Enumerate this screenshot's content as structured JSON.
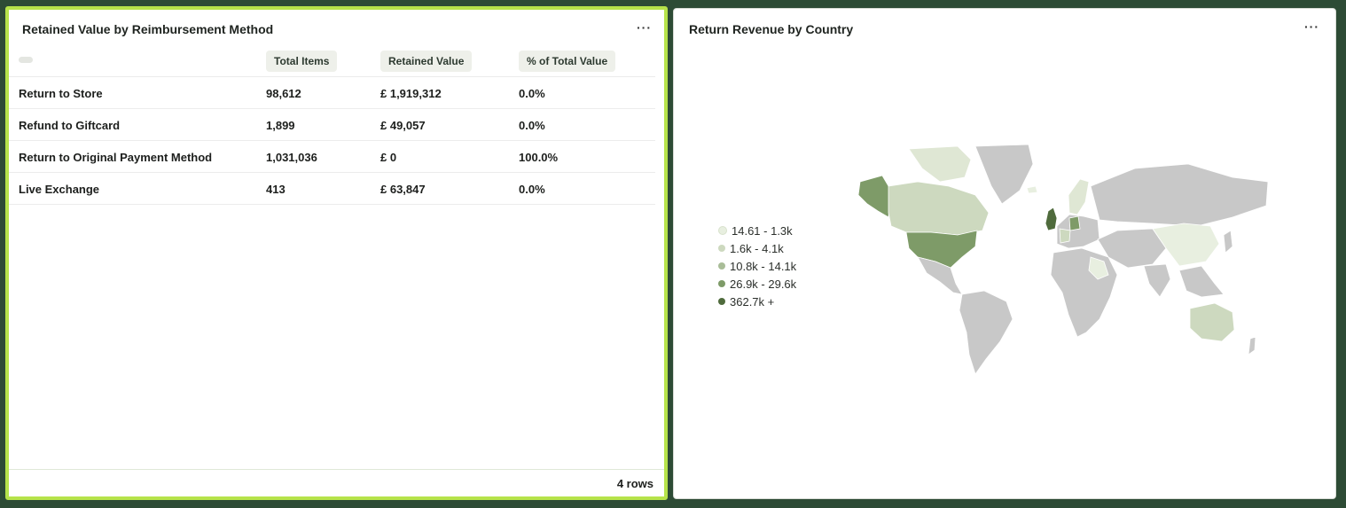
{
  "left_panel": {
    "title": "Retained Value by Reimbursement Method",
    "more_label": "···",
    "headers": [
      "Total Items",
      "Retained Value",
      "% of Total Value"
    ],
    "rows": [
      {
        "method": "Return to Store",
        "total_items": "98,612",
        "retained_value": "£ 1,919,312",
        "pct": "0.0%"
      },
      {
        "method": "Refund to Giftcard",
        "total_items": "1,899",
        "retained_value": "£ 49,057",
        "pct": "0.0%"
      },
      {
        "method": "Return to Original Payment Method",
        "total_items": "1,031,036",
        "retained_value": "£ 0",
        "pct": "100.0%"
      },
      {
        "method": "Live Exchange",
        "total_items": "413",
        "retained_value": "£ 63,847",
        "pct": "0.0%"
      }
    ],
    "footer": "4 rows"
  },
  "right_panel": {
    "title": "Return Revenue by Country",
    "more_label": "···",
    "legend": [
      {
        "label": "14.61 - 1.3k",
        "color": "#e8efe0"
      },
      {
        "label": "1.6k - 4.1k",
        "color": "#cdd9bf"
      },
      {
        "label": "10.8k - 14.1k",
        "color": "#a9bd98"
      },
      {
        "label": "26.9k - 29.6k",
        "color": "#7e9b68"
      },
      {
        "label": "362.7k +",
        "color": "#4f6b3c"
      }
    ]
  },
  "colors": {
    "accent_border": "#b6e34a",
    "background": "#2d4b35",
    "map_land": "#c8c8c8"
  }
}
